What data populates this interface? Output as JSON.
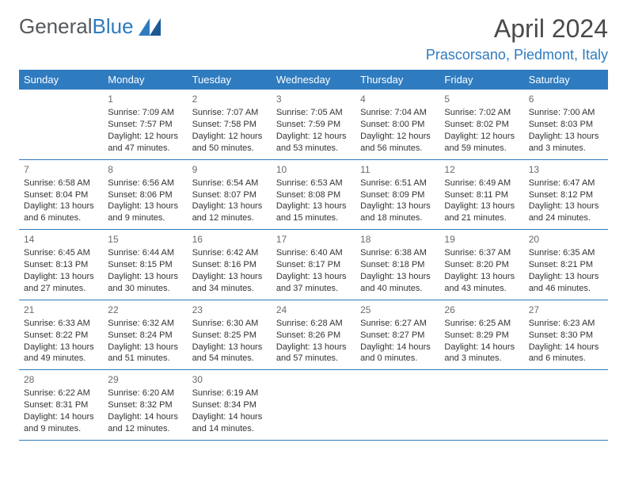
{
  "logo": {
    "text_main": "General",
    "text_accent": "Blue"
  },
  "title": "April 2024",
  "location": "Prascorsano, Piedmont, Italy",
  "colors": {
    "header_bg": "#2f7bbf",
    "header_text": "#ffffff",
    "accent": "#2f7bbf",
    "text": "#333333"
  },
  "weekdays": [
    "Sunday",
    "Monday",
    "Tuesday",
    "Wednesday",
    "Thursday",
    "Friday",
    "Saturday"
  ],
  "weeks": [
    [
      {
        "day": "",
        "sunrise": "",
        "sunset": "",
        "daylight": ""
      },
      {
        "day": "1",
        "sunrise": "Sunrise: 7:09 AM",
        "sunset": "Sunset: 7:57 PM",
        "daylight": "Daylight: 12 hours and 47 minutes."
      },
      {
        "day": "2",
        "sunrise": "Sunrise: 7:07 AM",
        "sunset": "Sunset: 7:58 PM",
        "daylight": "Daylight: 12 hours and 50 minutes."
      },
      {
        "day": "3",
        "sunrise": "Sunrise: 7:05 AM",
        "sunset": "Sunset: 7:59 PM",
        "daylight": "Daylight: 12 hours and 53 minutes."
      },
      {
        "day": "4",
        "sunrise": "Sunrise: 7:04 AM",
        "sunset": "Sunset: 8:00 PM",
        "daylight": "Daylight: 12 hours and 56 minutes."
      },
      {
        "day": "5",
        "sunrise": "Sunrise: 7:02 AM",
        "sunset": "Sunset: 8:02 PM",
        "daylight": "Daylight: 12 hours and 59 minutes."
      },
      {
        "day": "6",
        "sunrise": "Sunrise: 7:00 AM",
        "sunset": "Sunset: 8:03 PM",
        "daylight": "Daylight: 13 hours and 3 minutes."
      }
    ],
    [
      {
        "day": "7",
        "sunrise": "Sunrise: 6:58 AM",
        "sunset": "Sunset: 8:04 PM",
        "daylight": "Daylight: 13 hours and 6 minutes."
      },
      {
        "day": "8",
        "sunrise": "Sunrise: 6:56 AM",
        "sunset": "Sunset: 8:06 PM",
        "daylight": "Daylight: 13 hours and 9 minutes."
      },
      {
        "day": "9",
        "sunrise": "Sunrise: 6:54 AM",
        "sunset": "Sunset: 8:07 PM",
        "daylight": "Daylight: 13 hours and 12 minutes."
      },
      {
        "day": "10",
        "sunrise": "Sunrise: 6:53 AM",
        "sunset": "Sunset: 8:08 PM",
        "daylight": "Daylight: 13 hours and 15 minutes."
      },
      {
        "day": "11",
        "sunrise": "Sunrise: 6:51 AM",
        "sunset": "Sunset: 8:09 PM",
        "daylight": "Daylight: 13 hours and 18 minutes."
      },
      {
        "day": "12",
        "sunrise": "Sunrise: 6:49 AM",
        "sunset": "Sunset: 8:11 PM",
        "daylight": "Daylight: 13 hours and 21 minutes."
      },
      {
        "day": "13",
        "sunrise": "Sunrise: 6:47 AM",
        "sunset": "Sunset: 8:12 PM",
        "daylight": "Daylight: 13 hours and 24 minutes."
      }
    ],
    [
      {
        "day": "14",
        "sunrise": "Sunrise: 6:45 AM",
        "sunset": "Sunset: 8:13 PM",
        "daylight": "Daylight: 13 hours and 27 minutes."
      },
      {
        "day": "15",
        "sunrise": "Sunrise: 6:44 AM",
        "sunset": "Sunset: 8:15 PM",
        "daylight": "Daylight: 13 hours and 30 minutes."
      },
      {
        "day": "16",
        "sunrise": "Sunrise: 6:42 AM",
        "sunset": "Sunset: 8:16 PM",
        "daylight": "Daylight: 13 hours and 34 minutes."
      },
      {
        "day": "17",
        "sunrise": "Sunrise: 6:40 AM",
        "sunset": "Sunset: 8:17 PM",
        "daylight": "Daylight: 13 hours and 37 minutes."
      },
      {
        "day": "18",
        "sunrise": "Sunrise: 6:38 AM",
        "sunset": "Sunset: 8:18 PM",
        "daylight": "Daylight: 13 hours and 40 minutes."
      },
      {
        "day": "19",
        "sunrise": "Sunrise: 6:37 AM",
        "sunset": "Sunset: 8:20 PM",
        "daylight": "Daylight: 13 hours and 43 minutes."
      },
      {
        "day": "20",
        "sunrise": "Sunrise: 6:35 AM",
        "sunset": "Sunset: 8:21 PM",
        "daylight": "Daylight: 13 hours and 46 minutes."
      }
    ],
    [
      {
        "day": "21",
        "sunrise": "Sunrise: 6:33 AM",
        "sunset": "Sunset: 8:22 PM",
        "daylight": "Daylight: 13 hours and 49 minutes."
      },
      {
        "day": "22",
        "sunrise": "Sunrise: 6:32 AM",
        "sunset": "Sunset: 8:24 PM",
        "daylight": "Daylight: 13 hours and 51 minutes."
      },
      {
        "day": "23",
        "sunrise": "Sunrise: 6:30 AM",
        "sunset": "Sunset: 8:25 PM",
        "daylight": "Daylight: 13 hours and 54 minutes."
      },
      {
        "day": "24",
        "sunrise": "Sunrise: 6:28 AM",
        "sunset": "Sunset: 8:26 PM",
        "daylight": "Daylight: 13 hours and 57 minutes."
      },
      {
        "day": "25",
        "sunrise": "Sunrise: 6:27 AM",
        "sunset": "Sunset: 8:27 PM",
        "daylight": "Daylight: 14 hours and 0 minutes."
      },
      {
        "day": "26",
        "sunrise": "Sunrise: 6:25 AM",
        "sunset": "Sunset: 8:29 PM",
        "daylight": "Daylight: 14 hours and 3 minutes."
      },
      {
        "day": "27",
        "sunrise": "Sunrise: 6:23 AM",
        "sunset": "Sunset: 8:30 PM",
        "daylight": "Daylight: 14 hours and 6 minutes."
      }
    ],
    [
      {
        "day": "28",
        "sunrise": "Sunrise: 6:22 AM",
        "sunset": "Sunset: 8:31 PM",
        "daylight": "Daylight: 14 hours and 9 minutes."
      },
      {
        "day": "29",
        "sunrise": "Sunrise: 6:20 AM",
        "sunset": "Sunset: 8:32 PM",
        "daylight": "Daylight: 14 hours and 12 minutes."
      },
      {
        "day": "30",
        "sunrise": "Sunrise: 6:19 AM",
        "sunset": "Sunset: 8:34 PM",
        "daylight": "Daylight: 14 hours and 14 minutes."
      },
      {
        "day": "",
        "sunrise": "",
        "sunset": "",
        "daylight": ""
      },
      {
        "day": "",
        "sunrise": "",
        "sunset": "",
        "daylight": ""
      },
      {
        "day": "",
        "sunrise": "",
        "sunset": "",
        "daylight": ""
      },
      {
        "day": "",
        "sunrise": "",
        "sunset": "",
        "daylight": ""
      }
    ]
  ]
}
